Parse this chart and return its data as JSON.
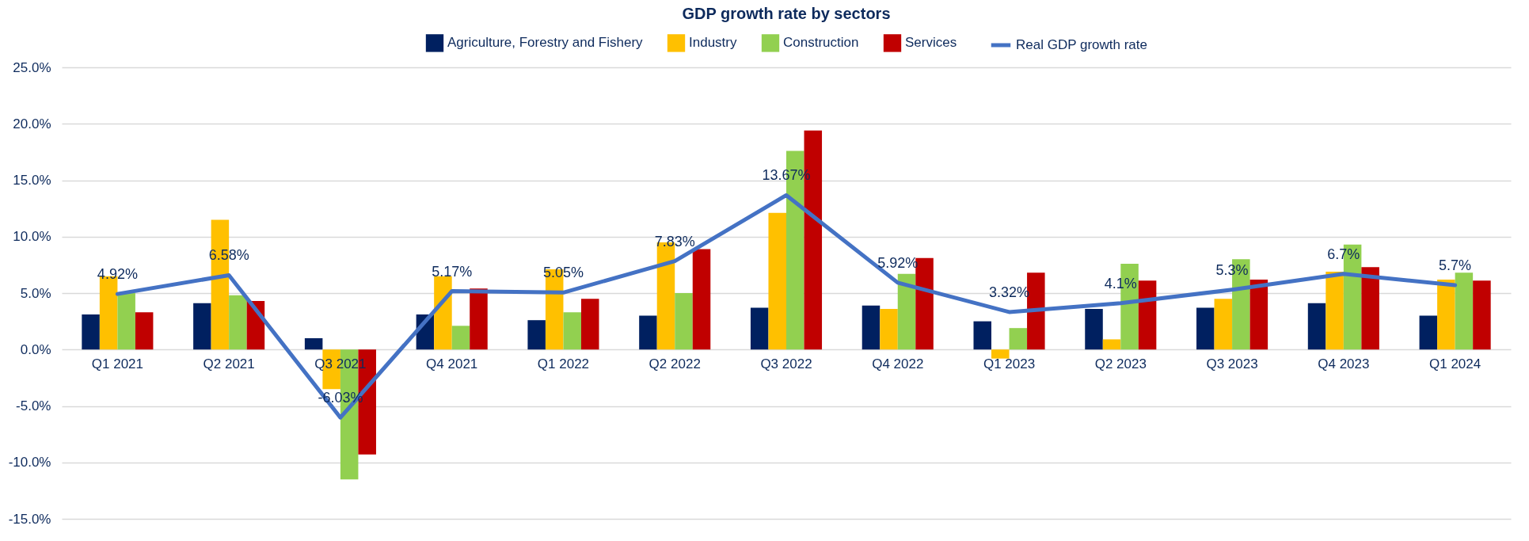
{
  "chart_data": {
    "type": "bar",
    "title": "GDP growth rate by sectors",
    "categories": [
      "Q1 2021",
      "Q2 2021",
      "Q3 2021",
      "Q4 2021",
      "Q1 2022",
      "Q2 2022",
      "Q3 2022",
      "Q4 2022",
      "Q1 2023",
      "Q2 2023",
      "Q3 2023",
      "Q4 2023",
      "Q1 2024"
    ],
    "series": [
      {
        "name": "Agriculture, Forestry and Fishery",
        "color": "#002060",
        "values": [
          3.1,
          4.1,
          1.0,
          3.1,
          2.6,
          3.0,
          3.7,
          3.9,
          2.5,
          3.6,
          3.7,
          4.1,
          3.0
        ]
      },
      {
        "name": "Industry",
        "color": "#ffc000",
        "values": [
          6.5,
          11.5,
          -3.5,
          6.5,
          7.1,
          9.5,
          12.1,
          3.6,
          -0.8,
          0.9,
          4.5,
          6.9,
          6.2
        ]
      },
      {
        "name": "Construction",
        "color": "#92d050",
        "values": [
          5.0,
          4.8,
          -11.5,
          2.1,
          3.3,
          5.0,
          17.6,
          6.7,
          1.9,
          7.6,
          8.0,
          9.3,
          6.8
        ]
      },
      {
        "name": "Services",
        "color": "#c00000",
        "values": [
          3.3,
          4.3,
          -9.3,
          5.4,
          4.5,
          8.9,
          19.4,
          8.1,
          6.8,
          6.1,
          6.2,
          7.3,
          6.1
        ]
      },
      {
        "name": "Real GDP growth rate",
        "type": "line",
        "color": "#4472c4",
        "values": [
          4.92,
          6.58,
          -6.03,
          5.17,
          5.05,
          7.83,
          13.67,
          5.92,
          3.32,
          4.1,
          5.3,
          6.7,
          5.7
        ],
        "value_labels": [
          "4.92%",
          "6.58%",
          "-6.03%",
          "5.17%",
          "5.05%",
          "7.83%",
          "13.67%",
          "5.92%",
          "3.32%",
          "4.1%",
          "5.3%",
          "6.7%",
          "5.7%"
        ]
      }
    ],
    "ylim": [
      -15,
      25
    ],
    "yticks": [
      {
        "value": -15,
        "label": "-15.0%"
      },
      {
        "value": -10,
        "label": "-10.0%"
      },
      {
        "value": -5,
        "label": "-5.0%"
      },
      {
        "value": 0,
        "label": "0.0%"
      },
      {
        "value": 5,
        "label": "5.0%"
      },
      {
        "value": 10,
        "label": "10.0%"
      },
      {
        "value": 15,
        "label": "15.0%"
      },
      {
        "value": 20,
        "label": "20.0%"
      },
      {
        "value": 25,
        "label": "25.0%"
      }
    ],
    "grid": "y",
    "legend": "top",
    "marker": "none",
    "line_style": "solid"
  }
}
